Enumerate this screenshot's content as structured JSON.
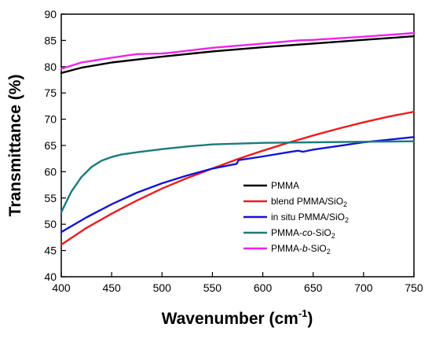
{
  "chart_data": {
    "type": "line",
    "title": "",
    "xlabel": "Wavenumber (cm",
    "xlabel_sup": "-1",
    "xlabel_end": ")",
    "ylabel": "Transmittance (%)",
    "xlim": [
      400,
      750
    ],
    "ylim": [
      40,
      90
    ],
    "xticks": [
      400,
      450,
      500,
      550,
      600,
      650,
      700,
      750
    ],
    "yticks": [
      40,
      45,
      50,
      55,
      60,
      65,
      70,
      75,
      80,
      85,
      90
    ],
    "grid": false,
    "legend_position": "bottom-right",
    "series": [
      {
        "name": "PMMA",
        "legend": [
          {
            "t": "PMMA"
          }
        ],
        "color": "#000000",
        "x": [
          400,
          420,
          450,
          500,
          550,
          600,
          650,
          700,
          750
        ],
        "y": [
          78.8,
          79.8,
          80.8,
          81.9,
          82.9,
          83.7,
          84.4,
          85.1,
          85.8
        ]
      },
      {
        "name": "blend PMMA/SiO2",
        "legend": [
          {
            "t": "blend PMMA/SiO"
          },
          {
            "t": "2",
            "sub": true
          }
        ],
        "color": "#ee1c1c",
        "x": [
          400,
          425,
          450,
          475,
          500,
          525,
          550,
          575,
          600,
          625,
          650,
          675,
          700,
          725,
          750
        ],
        "y": [
          46.1,
          49.3,
          52.0,
          54.5,
          56.8,
          58.8,
          60.6,
          62.4,
          64.0,
          65.5,
          66.9,
          68.2,
          69.4,
          70.5,
          71.4
        ]
      },
      {
        "name": "in situ PMMA/SiO2",
        "legend": [
          {
            "t": "in situ PMMA/SiO"
          },
          {
            "t": "2",
            "sub": true
          }
        ],
        "color": "#1414d8",
        "x": [
          400,
          425,
          450,
          475,
          500,
          525,
          550,
          574,
          576,
          600,
          625,
          635,
          640,
          650,
          675,
          700,
          725,
          750
        ],
        "y": [
          48.5,
          51.3,
          53.8,
          56.0,
          57.8,
          59.3,
          60.6,
          61.5,
          62.2,
          62.9,
          63.7,
          64.0,
          63.8,
          64.2,
          64.9,
          65.6,
          66.1,
          66.6
        ]
      },
      {
        "name": "PMMA-co-SiO2",
        "legend": [
          {
            "t": "PMMA-"
          },
          {
            "t": "co",
            "it": true
          },
          {
            "t": "-SiO"
          },
          {
            "t": "2",
            "sub": true
          }
        ],
        "color": "#1b7b7b",
        "x": [
          400,
          410,
          420,
          430,
          440,
          450,
          460,
          475,
          500,
          525,
          550,
          600,
          650,
          700,
          750
        ],
        "y": [
          52.3,
          56.2,
          59.0,
          60.9,
          62.1,
          62.8,
          63.3,
          63.7,
          64.3,
          64.8,
          65.2,
          65.5,
          65.6,
          65.7,
          65.8
        ]
      },
      {
        "name": "PMMA-b-SiO2",
        "legend": [
          {
            "t": "PMMA-"
          },
          {
            "t": "b",
            "it": true
          },
          {
            "t": "-SiO"
          },
          {
            "t": "2",
            "sub": true
          }
        ],
        "color": "#ee22ee",
        "x": [
          400,
          420,
          450,
          475,
          500,
          510,
          550,
          600,
          635,
          650,
          700,
          750
        ],
        "y": [
          79.6,
          80.8,
          81.7,
          82.4,
          82.5,
          82.7,
          83.6,
          84.4,
          85.0,
          85.1,
          85.7,
          86.4
        ]
      }
    ]
  }
}
